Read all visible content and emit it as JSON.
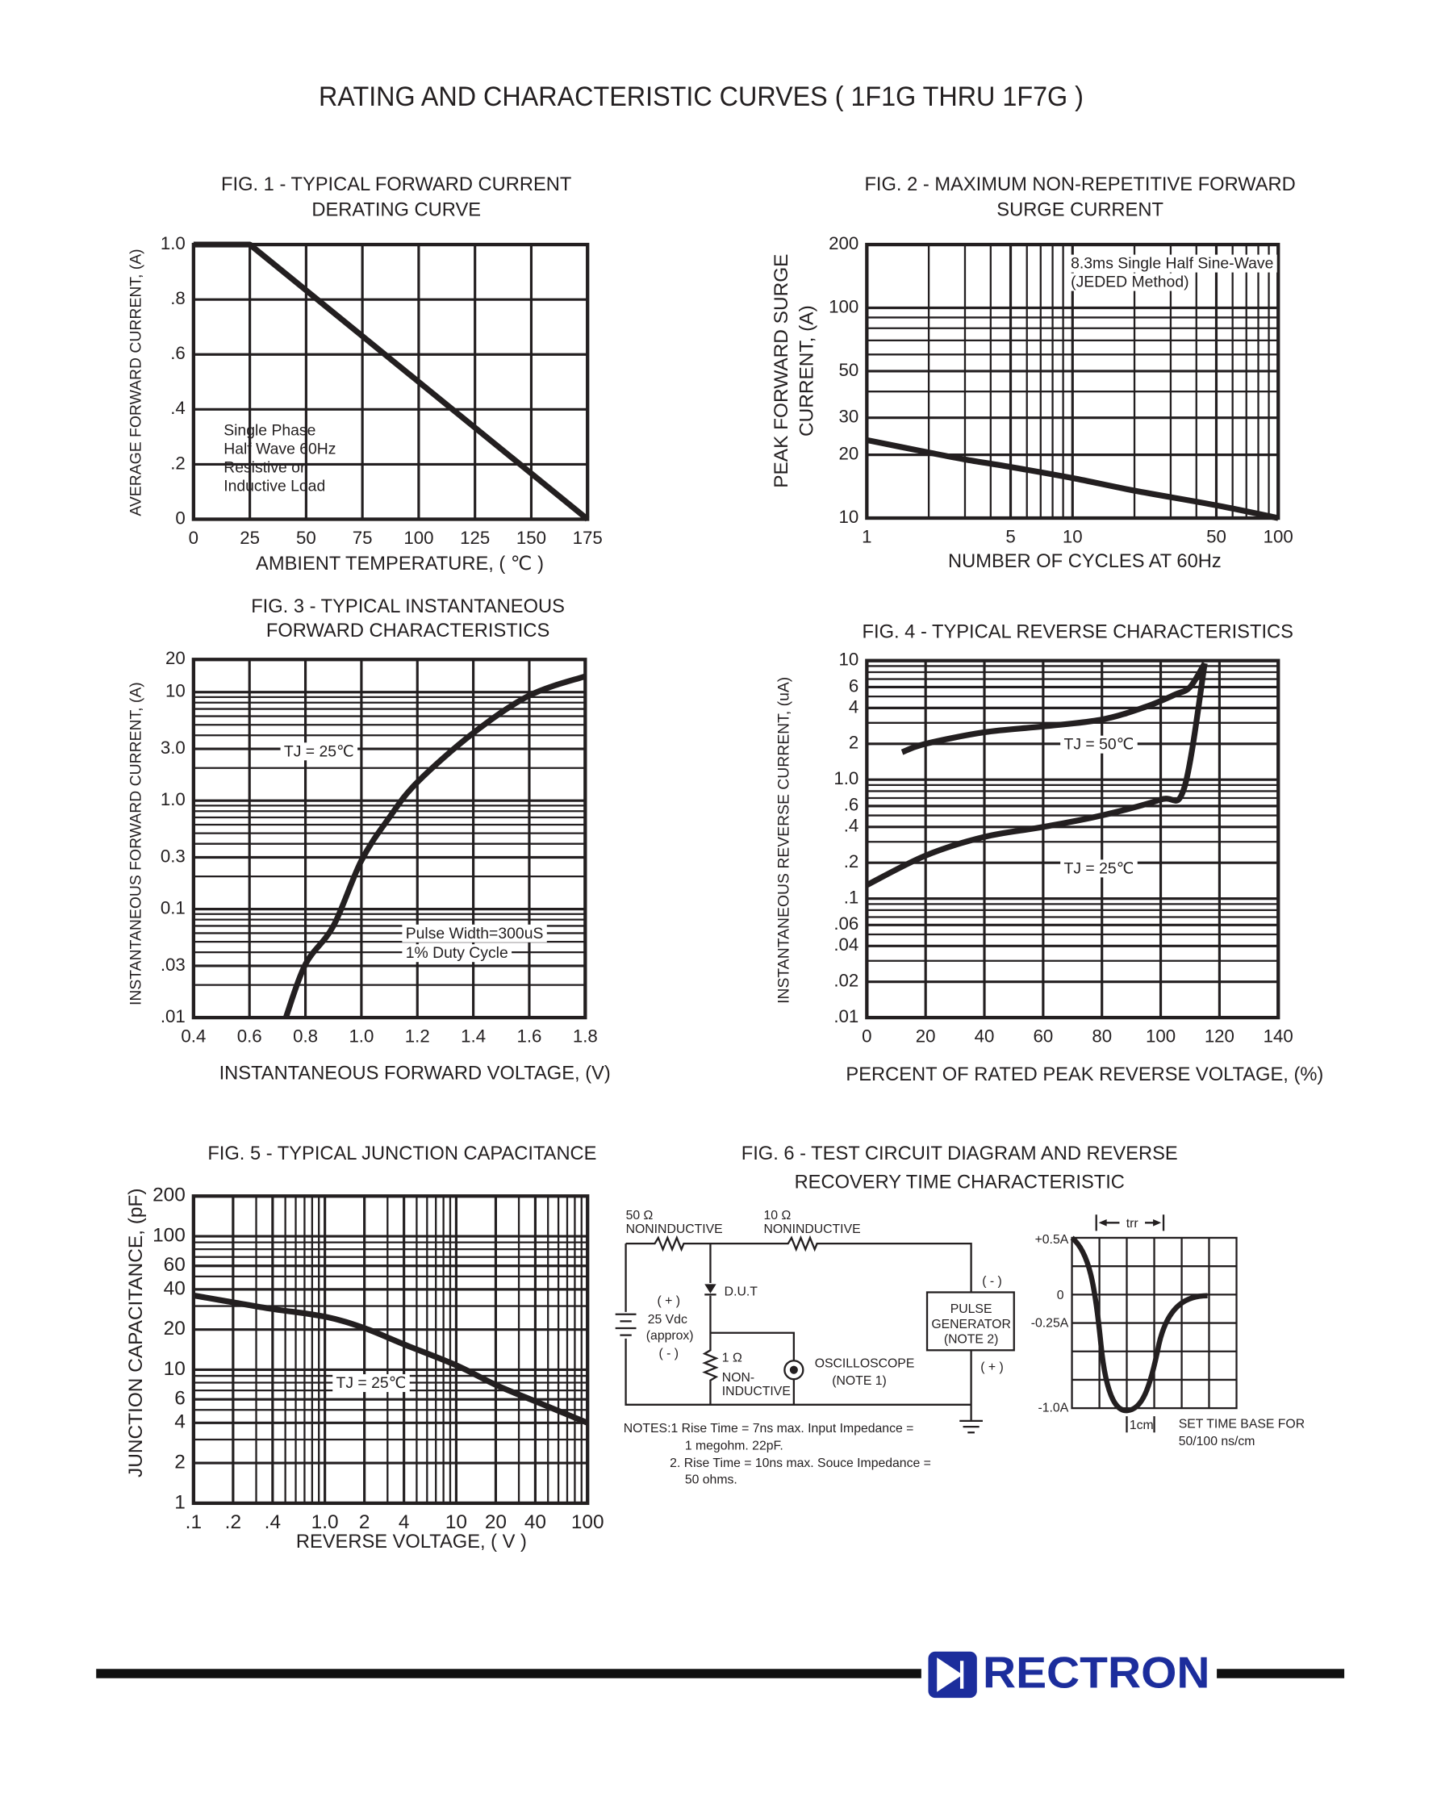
{
  "title": "RATING AND CHARACTERISTIC CURVES ( 1F1G THRU 1F7G )",
  "brand": "RECTRON",
  "chart_data": [
    {
      "type": "line",
      "title": [
        "FIG. 1 - TYPICAL FORWARD CURRENT",
        "DERATING CURVE"
      ],
      "x_label": "AMBIENT TEMPERATURE, ( ℃ )",
      "y_label": [
        "AVERAGE FORWARD CURRENT, (A)"
      ],
      "annotations": [
        "Single Phase",
        "Half Wave 60Hz",
        "Resistive or",
        "Inductive Load"
      ],
      "series": [
        {
          "color": "#231f20",
          "x": [
            0,
            25,
            175
          ],
          "values": [
            1,
            1,
            0
          ]
        }
      ],
      "xlim": [
        0,
        175
      ],
      "ylim": [
        0,
        1
      ],
      "xticks": [
        0,
        25,
        50,
        75,
        100,
        125,
        150,
        175
      ],
      "yticks": [
        0,
        {
          "value": 0.2,
          "label": ".2"
        },
        {
          "value": 0.4,
          "label": ".4"
        },
        {
          "value": 0.6,
          "label": ".6"
        },
        {
          "value": 0.8,
          "label": ".8"
        },
        {
          "value": 1,
          "label": "1.0"
        }
      ],
      "grid": true
    },
    {
      "type": "line",
      "title": [
        "FIG. 2 - MAXIMUM NON-REPETITIVE FORWARD",
        "SURGE CURRENT"
      ],
      "x_label": "NUMBER OF CYCLES AT 60Hz",
      "y_label": [
        "PEAK FORWARD SURGE",
        "CURRENT, (A)"
      ],
      "annotations": [
        "8.3ms Single Half Sine-Wave",
        "(JEDED Method)"
      ],
      "series": [
        {
          "color": "#231f20",
          "x": [
            1,
            2,
            3,
            5,
            10,
            20,
            50,
            100
          ],
          "values": [
            23.5,
            20.5,
            19,
            17.5,
            15.5,
            13.5,
            11.5,
            10
          ]
        }
      ],
      "xlim": [
        1,
        100
      ],
      "ylim": [
        10,
        200
      ],
      "xlog": true,
      "ylog": true,
      "xticks": [
        1,
        5,
        10,
        50,
        100
      ],
      "yticks": [
        10,
        20,
        30,
        50,
        100,
        200
      ],
      "xgrid": [
        2,
        3,
        4,
        6,
        7,
        8,
        9,
        20,
        30,
        40,
        60,
        70,
        80,
        90
      ],
      "ygrid": [
        40,
        60,
        70,
        80,
        90
      ],
      "grid": true
    },
    {
      "type": "line",
      "title": [
        "FIG. 3 - TYPICAL INSTANTANEOUS",
        "FORWARD CHARACTERISTICS"
      ],
      "x_label": "INSTANTANEOUS FORWARD VOLTAGE, (V)",
      "y_label": [
        "INSTANTANEOUS FORWARD CURRENT, (A)"
      ],
      "annotations": [
        "TJ = 25℃",
        "Pulse Width=300uS",
        "1% Duty Cycle"
      ],
      "series": [
        {
          "color": "#231f20",
          "x": [
            0.73,
            0.8,
            0.9,
            1.0,
            1.1,
            1.2,
            1.4,
            1.6,
            1.8
          ],
          "values": [
            0.01,
            0.031,
            0.07,
            0.28,
            0.7,
            1.48,
            4.2,
            9.3,
            14
          ]
        }
      ],
      "xlim": [
        0.4,
        1.8
      ],
      "ylim": [
        0.01,
        20
      ],
      "ylog": true,
      "xticks": [
        0.4,
        0.6,
        0.8,
        {
          "value": 1,
          "label": "1.0"
        },
        1.2,
        1.4,
        1.6,
        1.8
      ],
      "yticks": [
        {
          "value": 0.01,
          "label": ".01"
        },
        {
          "value": 0.03,
          "label": ".03"
        },
        0.1,
        0.3,
        {
          "value": 1,
          "label": "1.0"
        },
        {
          "value": 3,
          "label": "3.0"
        },
        10,
        20
      ],
      "ygrid": [
        0.02,
        0.04,
        0.05,
        0.06,
        0.07,
        0.08,
        0.09,
        0.2,
        0.4,
        0.5,
        0.6,
        0.7,
        0.8,
        0.9,
        2,
        4,
        5,
        6,
        7,
        8,
        9
      ],
      "grid": true
    },
    {
      "type": "line",
      "title": [
        "FIG. 4 - TYPICAL REVERSE CHARACTERISTICS"
      ],
      "x_label": "PERCENT OF RATED PEAK REVERSE VOLTAGE, (%)",
      "y_label": [
        "INSTANTANEOUS REVERSE CURRENT, (uA)"
      ],
      "annotations": [
        "TJ = 50℃",
        "TJ = 25℃"
      ],
      "series": [
        {
          "color": "#231f20",
          "x": [
            12,
            20,
            40,
            60,
            80,
            95,
            105,
            110,
            115
          ],
          "values": [
            1.7,
            2.0,
            2.5,
            2.8,
            3.2,
            4.1,
            5.2,
            6,
            9.5
          ]
        },
        {
          "color": "#231f20",
          "x": [
            0,
            20,
            40,
            60,
            80,
            100,
            108,
            115
          ],
          "values": [
            0.13,
            0.23,
            0.33,
            0.4,
            0.5,
            0.68,
            0.85,
            9.5
          ]
        }
      ],
      "xlim": [
        0,
        140
      ],
      "ylim": [
        0.01,
        10
      ],
      "ylog": true,
      "xticks": [
        0,
        20,
        40,
        60,
        80,
        100,
        120,
        140
      ],
      "yticks": [
        {
          "value": 0.01,
          "label": ".01"
        },
        {
          "value": 0.02,
          "label": ".02"
        },
        {
          "value": 0.04,
          "label": ".04"
        },
        {
          "value": 0.06,
          "label": ".06"
        },
        {
          "value": 0.1,
          "label": ".1"
        },
        {
          "value": 0.2,
          "label": ".2"
        },
        {
          "value": 0.4,
          "label": ".4"
        },
        {
          "value": 0.6,
          "label": ".6"
        },
        {
          "value": 1,
          "label": "1.0"
        },
        2,
        4,
        6,
        10
      ],
      "ygrid": [
        0.03,
        0.05,
        0.07,
        0.08,
        0.09,
        0.3,
        0.5,
        0.7,
        0.8,
        0.9,
        3,
        5,
        7,
        8,
        9
      ],
      "grid": true
    },
    {
      "type": "line",
      "title": [
        "FIG. 5 - TYPICAL JUNCTION CAPACITANCE"
      ],
      "x_label": "REVERSE VOLTAGE, ( V )",
      "y_label": [
        "JUNCTION CAPACITANCE, (pF)"
      ],
      "annotations": [
        "TJ = 25℃"
      ],
      "series": [
        {
          "color": "#231f20",
          "x": [
            0.1,
            0.2,
            0.4,
            1,
            2,
            4,
            10,
            20,
            40,
            100
          ],
          "values": [
            36,
            32,
            28.5,
            25,
            20.5,
            15.5,
            10.8,
            7.7,
            5.8,
            4
          ]
        }
      ],
      "xlim": [
        0.1,
        100
      ],
      "ylim": [
        1,
        200
      ],
      "xlog": true,
      "ylog": true,
      "xticks": [
        {
          "value": 0.1,
          "label": ".1"
        },
        {
          "value": 0.2,
          "label": ".2"
        },
        {
          "value": 0.4,
          "label": ".4"
        },
        {
          "value": 1,
          "label": "1.0"
        },
        2,
        4,
        10,
        20,
        40,
        100
      ],
      "yticks": [
        1,
        2,
        4,
        6,
        10,
        20,
        40,
        60,
        100,
        200
      ],
      "xgrid": [
        0.3,
        0.5,
        0.6,
        0.7,
        0.8,
        0.9,
        3,
        5,
        6,
        7,
        8,
        9,
        30,
        50,
        60,
        70,
        80,
        90
      ],
      "ygrid": [
        3,
        5,
        7,
        8,
        9,
        30,
        50,
        70,
        80,
        90
      ],
      "grid": true
    }
  ],
  "figure6": {
    "title": [
      "FIG. 6 - TEST CIRCUIT DIAGRAM  AND REVERSE",
      "RECOVERY TIME CHARACTERISTIC"
    ],
    "labels": [
      "50 Ω",
      "NONINDUCTIVE",
      "10 Ω",
      "NONINDUCTIVE",
      "D.U.T",
      "( + )",
      "25 Vdc",
      "(approx)",
      "( - )",
      "1 Ω",
      "NON-",
      "INDUCTIVE",
      "OSCILLOSCOPE",
      "(NOTE 1)",
      "( - )",
      "PULSE",
      "GENERATOR",
      "(NOTE 2)",
      "( + )"
    ],
    "notes": [
      "NOTES:1  Rise Time = 7ns max. Input Impedance =",
      "1 megohm. 22pF.",
      "2. Rise Time = 10ns max. Souce Impedance =",
      "50 ohms."
    ],
    "waveform_labels": [
      "trr",
      "+0.5A",
      "0",
      "-0.25A",
      "-1.0A",
      "1cm",
      "SET TIME BASE FOR",
      "50/100 ns/cm"
    ]
  }
}
